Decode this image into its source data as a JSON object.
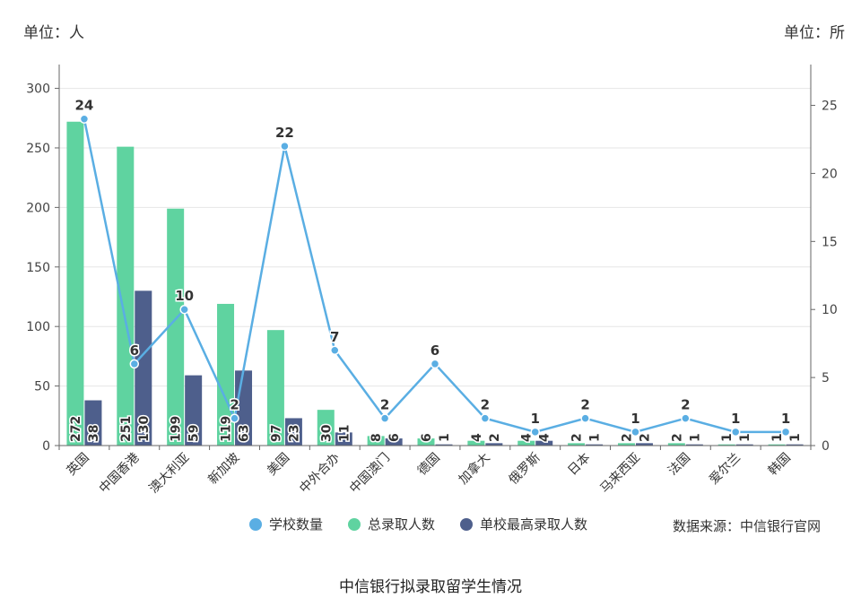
{
  "left_unit": "单位：人",
  "right_unit": "单位：所",
  "source": "数据来源：中信银行官网",
  "chart_data": {
    "type": "bar",
    "title": "中信银行拟录取留学生情况",
    "categories": [
      "英国",
      "中国香港",
      "澳大利亚",
      "新加坡",
      "美国",
      "中外合办",
      "中国澳门",
      "德国",
      "加拿大",
      "俄罗斯",
      "日本",
      "马来西亚",
      "法国",
      "爱尔兰",
      "韩国"
    ],
    "series": [
      {
        "name": "学校数量",
        "kind": "line",
        "axis": "right",
        "color": "#5aaee3",
        "values": [
          24,
          6,
          10,
          2,
          22,
          7,
          2,
          6,
          2,
          1,
          2,
          1,
          2,
          1,
          1
        ]
      },
      {
        "name": "总录取人数",
        "kind": "bar",
        "axis": "left",
        "color": "#5fd3a0",
        "values": [
          272,
          251,
          199,
          119,
          97,
          30,
          8,
          6,
          4,
          4,
          2,
          2,
          2,
          1,
          1
        ]
      },
      {
        "name": "单校最高录取人数",
        "kind": "bar",
        "axis": "left",
        "color": "#4e5f8c",
        "values": [
          38,
          130,
          59,
          63,
          23,
          11,
          6,
          1,
          2,
          4,
          1,
          2,
          1,
          1,
          1
        ]
      }
    ],
    "y_left": {
      "ticks": [
        0,
        50,
        100,
        150,
        200,
        250,
        300
      ],
      "ylim": [
        0,
        320
      ]
    },
    "y_right": {
      "ticks": [
        0,
        5,
        10,
        15,
        20,
        25
      ],
      "ylim": [
        0,
        28
      ]
    },
    "grid": true,
    "legend": "bottom"
  }
}
